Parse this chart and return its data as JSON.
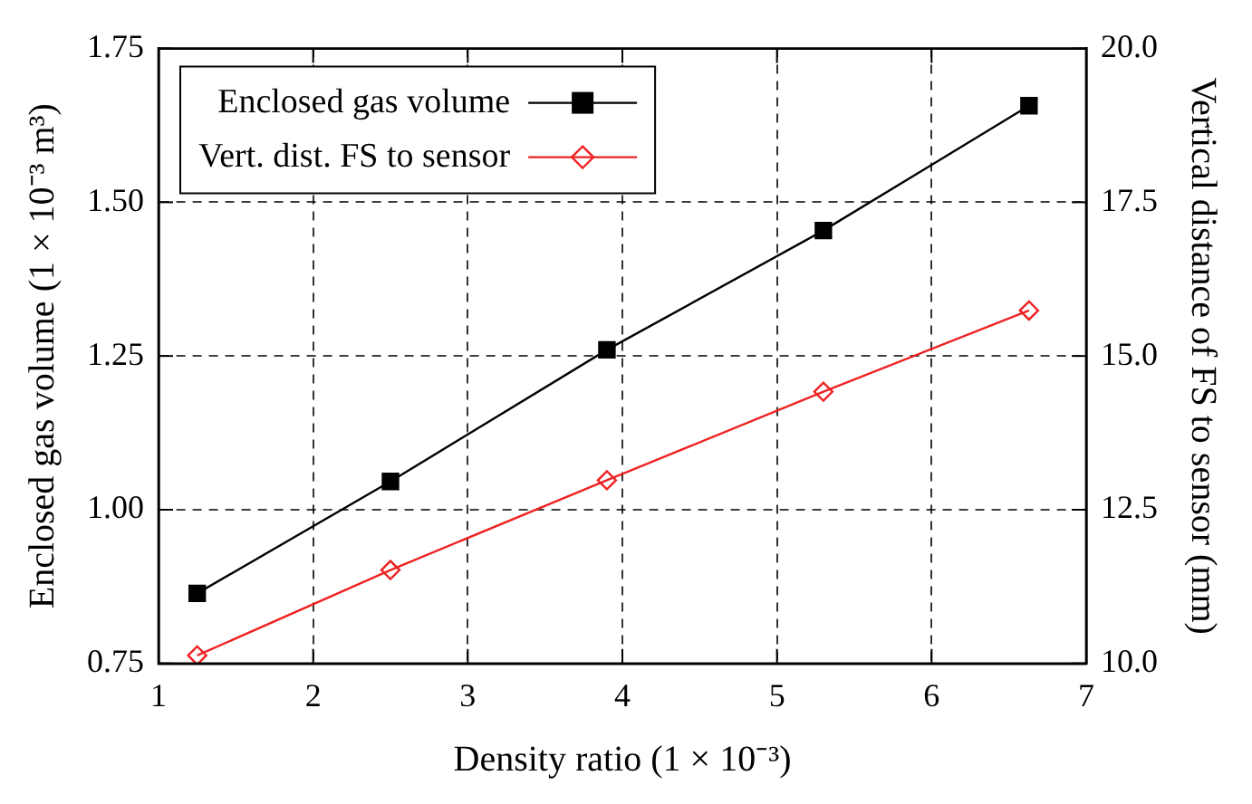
{
  "chart_data": {
    "type": "line",
    "xlabel": "Density ratio (1 × 10⁻³)",
    "ylabel": "Enclosed gas volume (1 × 10⁻³ m³)",
    "y2label": "Vertical distance of FS to sensor (mm)",
    "x": [
      1.25,
      2.5,
      3.9,
      5.3,
      6.63
    ],
    "series": [
      {
        "name": "Enclosed gas volume",
        "color": "#000000",
        "marker": "square",
        "values": [
          0.864,
          1.046,
          1.26,
          1.454,
          1.657
        ]
      },
      {
        "name": "Vert. dist. FS to sensor",
        "color": "#ee2222",
        "marker": "diamond",
        "axis": "y2",
        "values": [
          10.13,
          11.52,
          12.98,
          14.42,
          15.74
        ]
      }
    ],
    "xlim": [
      1,
      7
    ],
    "xticks": [
      1,
      2,
      3,
      4,
      5,
      6,
      7
    ],
    "ylim": [
      0.75,
      1.75
    ],
    "yticks": [
      {
        "value": 0.75,
        "label": "0.75"
      },
      {
        "value": 1,
        "label": "1.00"
      },
      {
        "value": 1.25,
        "label": "1.25"
      },
      {
        "value": 1.5,
        "label": "1.50"
      },
      {
        "value": 1.75,
        "label": "1.75"
      }
    ],
    "y2lim": [
      10,
      20
    ],
    "y2ticks": [
      {
        "value": 10,
        "label": "10.0"
      },
      {
        "value": 12.5,
        "label": "12.5"
      },
      {
        "value": 15,
        "label": "15.0"
      },
      {
        "value": 17.5,
        "label": "17.5"
      },
      {
        "value": 20,
        "label": "20.0"
      }
    ],
    "grid": true,
    "legend": "top left",
    "line_style": "solid"
  }
}
